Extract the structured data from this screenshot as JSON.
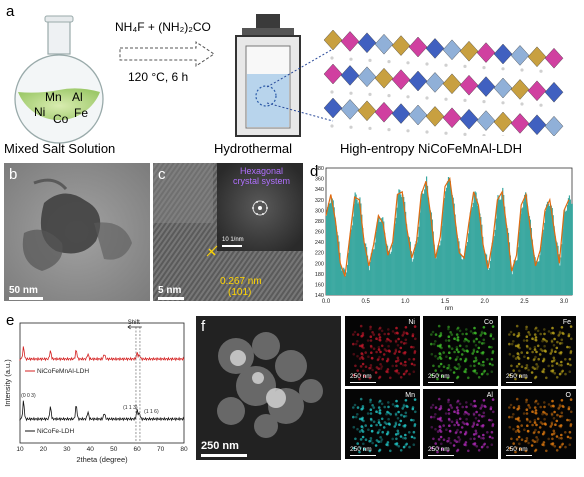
{
  "panels": {
    "a": {
      "label": "a",
      "reagents": "NH₄F + (NH₂)₂CO",
      "conditions": "120 °C, 6 h",
      "elements": [
        "Mn",
        "Al",
        "Ni",
        "Co",
        "Fe"
      ],
      "captions": [
        "Mixed Salt Solution",
        "Hydrothermal",
        "High-entropy  NiCoFeMnAl-LDH"
      ]
    },
    "b": {
      "label": "b",
      "scale": "50 nm"
    },
    "c": {
      "label": "c",
      "scale": "5 nm",
      "fft_title_1": "Hexagonal",
      "fft_title_2": "crystal system",
      "fft_scale": "10 1/nm",
      "d_spacing": "0.267 nm",
      "plane": "(101)"
    },
    "d": {
      "label": "d",
      "xunit": "nm"
    },
    "e": {
      "label": "e",
      "shift": "Shift",
      "legend_top": "NiCoFeMnAl-LDH",
      "legend_bottom": "NiCoFe-LDH",
      "peaks": [
        "(0 0 3)",
        "(1 1 3)",
        "(1 1 6)"
      ]
    },
    "f": {
      "label": "f",
      "scale_main": "250 nm",
      "maps": [
        {
          "el": "Ni",
          "scale": "250 nm",
          "color": "#c0182a"
        },
        {
          "el": "Co",
          "scale": "250 nm",
          "color": "#3fbf2a"
        },
        {
          "el": "Fe",
          "scale": "250 nm",
          "color": "#b9a21a"
        },
        {
          "el": "Mn",
          "scale": "250 nm",
          "color": "#22c8c8"
        },
        {
          "el": "Al",
          "scale": "250 nm",
          "color": "#b02ab8"
        },
        {
          "el": "O",
          "scale": "250 nm",
          "color": "#e07a10"
        }
      ]
    }
  },
  "chart_data": [
    {
      "type": "line",
      "panel": "d",
      "xlabel": "nm",
      "ylabel": "",
      "xlim": [
        0,
        3.1
      ],
      "ylim": [
        140,
        380
      ],
      "xticks": [
        "0.0",
        "0.5",
        "1.0",
        "1.5",
        "2.0",
        "2.5",
        "3.0"
      ],
      "yticks": [
        "140",
        "160",
        "180",
        "200",
        "220",
        "240",
        "260",
        "280",
        "300",
        "320",
        "340",
        "360",
        "380"
      ],
      "series": [
        {
          "x": [
            0.0,
            0.06,
            0.12,
            0.18,
            0.24,
            0.3,
            0.36,
            0.42,
            0.48,
            0.54,
            0.6,
            0.66,
            0.72,
            0.78,
            0.84,
            0.9,
            0.96,
            1.02,
            1.08,
            1.14,
            1.2,
            1.26,
            1.32,
            1.38,
            1.44,
            1.5,
            1.56,
            1.62,
            1.68,
            1.74,
            1.8,
            1.86,
            1.92,
            1.98,
            2.04,
            2.1,
            2.16,
            2.22,
            2.28,
            2.34,
            2.4,
            2.46,
            2.52,
            2.58,
            2.64,
            2.7,
            2.76,
            2.82,
            2.88,
            2.94,
            3.0,
            3.06
          ],
          "values": [
            290,
            330,
            280,
            200,
            175,
            250,
            325,
            320,
            240,
            195,
            235,
            290,
            275,
            215,
            240,
            330,
            335,
            265,
            210,
            240,
            330,
            355,
            290,
            210,
            250,
            345,
            360,
            290,
            220,
            210,
            275,
            335,
            310,
            235,
            190,
            240,
            320,
            335,
            265,
            185,
            215,
            310,
            330,
            260,
            195,
            225,
            300,
            320,
            260,
            200,
            300,
            320
          ]
        }
      ]
    },
    {
      "type": "line",
      "panel": "e",
      "xlabel": "2theta (degree)",
      "ylabel": "Intensity (a.u.)",
      "xlim": [
        10,
        80
      ],
      "xticks": [
        "10",
        "20",
        "30",
        "40",
        "50",
        "60",
        "70",
        "80"
      ],
      "series": [
        {
          "name": "NiCoFeMnAl-LDH",
          "color": "#d42020"
        },
        {
          "name": "NiCoFe-LDH",
          "color": "#111111"
        }
      ]
    }
  ]
}
